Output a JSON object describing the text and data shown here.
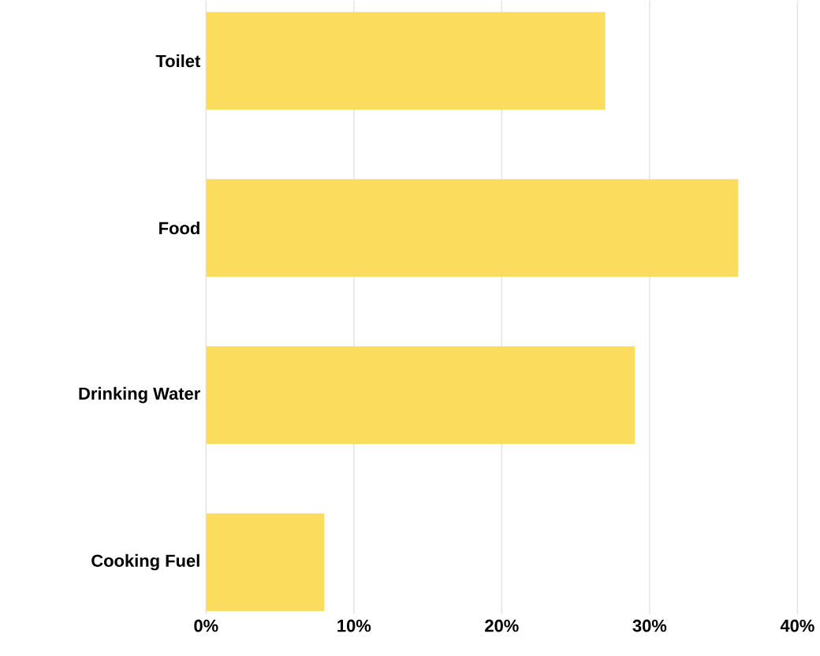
{
  "chart_data": {
    "type": "bar",
    "orientation": "horizontal",
    "categories": [
      "Toilet",
      "Food",
      "Drinking Water",
      "Cooking Fuel"
    ],
    "values": [
      27,
      36,
      29,
      8
    ],
    "color": "#fbdc5c",
    "xlim": [
      0,
      40
    ],
    "xticks": [
      {
        "value": 0,
        "label": "0%"
      },
      {
        "value": 10,
        "label": "10%"
      },
      {
        "value": 20,
        "label": "20%"
      },
      {
        "value": 30,
        "label": "30%"
      },
      {
        "value": 40,
        "label": "40%"
      }
    ],
    "grid": "x"
  }
}
